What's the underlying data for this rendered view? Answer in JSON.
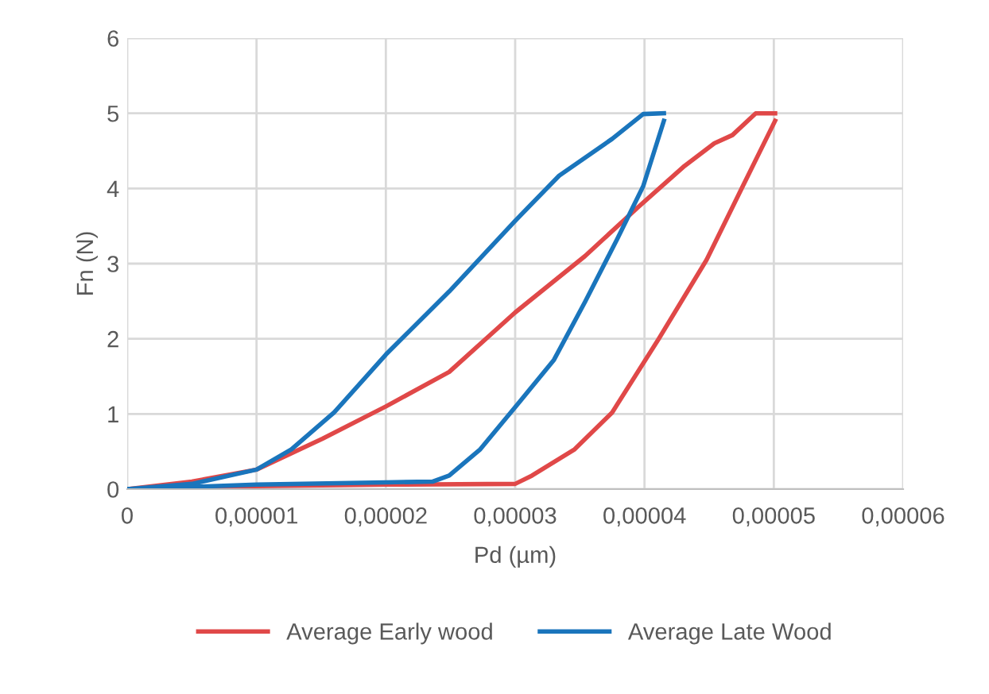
{
  "chart_data": {
    "type": "line",
    "xlabel": "Pd (µm)",
    "ylabel": "Fn (N)",
    "xlim": [
      0,
      6e-05
    ],
    "ylim": [
      0,
      6
    ],
    "xticks": [
      0,
      {
        "value": 1e-05,
        "label": "0,00001"
      },
      {
        "value": 2e-05,
        "label": "0,00002"
      },
      {
        "value": 3e-05,
        "label": "0,00003"
      },
      {
        "value": 4e-05,
        "label": "0,00004"
      },
      {
        "value": 5e-05,
        "label": "0,00005"
      },
      {
        "value": 6e-05,
        "label": "0,00006"
      }
    ],
    "yticks": [
      0,
      1,
      2,
      3,
      4,
      5,
      6
    ],
    "grid": true,
    "legend": "bottom",
    "marker": "none",
    "line_style": "solid",
    "series": [
      {
        "name": "Average Early wood",
        "color": "#e04848",
        "x": [
          0,
          5e-06,
          1e-05,
          1.51e-05,
          2e-05,
          2.49e-05,
          3e-05,
          3.54e-05,
          3.95e-05,
          4.31e-05,
          4.54e-05,
          4.68e-05,
          4.86e-05,
          5.01e-05
        ],
        "values": [
          0,
          0.1,
          0.26,
          0.67,
          1.1,
          1.56,
          2.35,
          3.1,
          3.75,
          4.3,
          4.6,
          4.71,
          5.0,
          5.0
        ]
      },
      {
        "color": "#e04848",
        "x": [
          0,
          1e-05,
          2e-05,
          3e-05,
          3.13e-05,
          3.46e-05,
          3.75e-05,
          4.11e-05,
          4.48e-05,
          4.76e-05,
          5.01e-05
        ],
        "values": [
          0,
          0.04,
          0.06,
          0.07,
          0.18,
          0.53,
          1.02,
          2.0,
          3.05,
          4.03,
          4.9
        ]
      },
      {
        "name": "Average Late Wood",
        "color": "#1a75bc",
        "x": [
          0,
          5e-06,
          1e-05,
          1.27e-05,
          1.6e-05,
          2e-05,
          2.49e-05,
          3e-05,
          3.34e-05,
          3.75e-05,
          3.99e-05,
          4.15e-05
        ],
        "values": [
          0,
          0.07,
          0.26,
          0.53,
          1.02,
          1.79,
          2.63,
          3.57,
          4.17,
          4.66,
          4.99,
          5.0
        ]
      },
      {
        "color": "#1a75bc",
        "x": [
          0,
          1e-05,
          2e-05,
          2.36e-05,
          2.49e-05,
          2.73e-05,
          3e-05,
          3.3e-05,
          3.54e-05,
          3.79e-05,
          3.99e-05,
          4.15e-05
        ],
        "values": [
          0,
          0.06,
          0.09,
          0.1,
          0.18,
          0.53,
          1.09,
          1.72,
          2.49,
          3.33,
          4.03,
          4.9
        ]
      }
    ]
  }
}
